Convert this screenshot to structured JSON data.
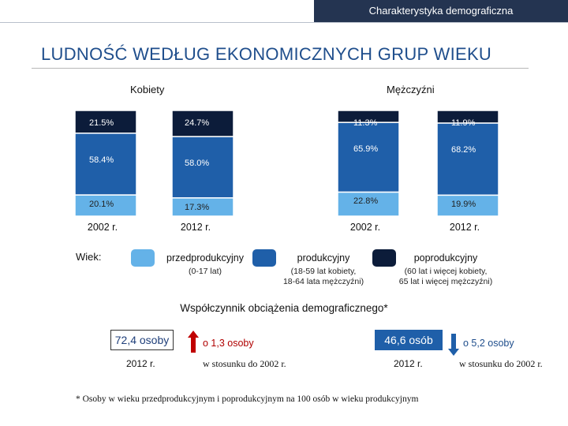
{
  "header": {
    "title": "Charakterystyka demograficzna"
  },
  "page_title": "LUDNOŚĆ WEDŁUG EKONOMICZNYCH GRUP WIEKU",
  "colors": {
    "pre": "#64b2e8",
    "working": "#1f5fa9",
    "post": "#0c1c3a",
    "header_bg": "#243451",
    "up_arrow": "#c00000",
    "down_arrow": "#1f5fa9"
  },
  "chart_data": {
    "type": "bar",
    "stacked": true,
    "groups": [
      "Kobiety",
      "Mężczyźni"
    ],
    "categories": [
      "2002 r.",
      "2012 r.",
      "2002 r.",
      "2012 r."
    ],
    "series": [
      {
        "name": "przedprodukcyjny",
        "values": [
          20.1,
          17.3,
          22.8,
          19.9
        ]
      },
      {
        "name": "produkcyjny",
        "values": [
          58.4,
          58.0,
          65.9,
          68.2
        ]
      },
      {
        "name": "poprodukcyjny",
        "values": [
          21.5,
          24.7,
          11.3,
          11.9
        ]
      }
    ],
    "labels": {
      "pre": [
        "20.1%",
        "17.3%",
        "22.8%",
        "19.9%"
      ],
      "working": [
        "58.4%",
        "58.0%",
        "65.9%",
        "68.2%"
      ],
      "post": [
        "21.5%",
        "24.7%",
        "11.3%",
        "11.9%"
      ]
    },
    "ylim": [
      0,
      100
    ]
  },
  "legend": {
    "title": "Wiek:",
    "items": [
      {
        "name": "przedprodukcyjny",
        "desc": [
          "(0-17 lat)"
        ]
      },
      {
        "name": "produkcyjny",
        "desc": [
          "(18-59 lat kobiety,",
          "18-64 lata mężczyźni)"
        ]
      },
      {
        "name": "poprodukcyjny",
        "desc": [
          "(60 lat i więcej kobiety,",
          "65 lat i więcej mężczyźni)"
        ]
      }
    ]
  },
  "dependency": {
    "title": "Współczynnik obciążenia demograficznego*",
    "women": {
      "value": "72,4 osoby",
      "year": "2012 r.",
      "change": "o  1,3 osoby",
      "compare": "w stosunku do 2002 r."
    },
    "men": {
      "value": "46,6 osób",
      "year": "2012 r.",
      "change": "o  5,2 osoby",
      "compare": "w stosunku do 2002 r."
    }
  },
  "footnote": "* Osoby w wieku przedprodukcyjnym i poprodukcyjnym na 100 osób w wieku produkcyjnym"
}
